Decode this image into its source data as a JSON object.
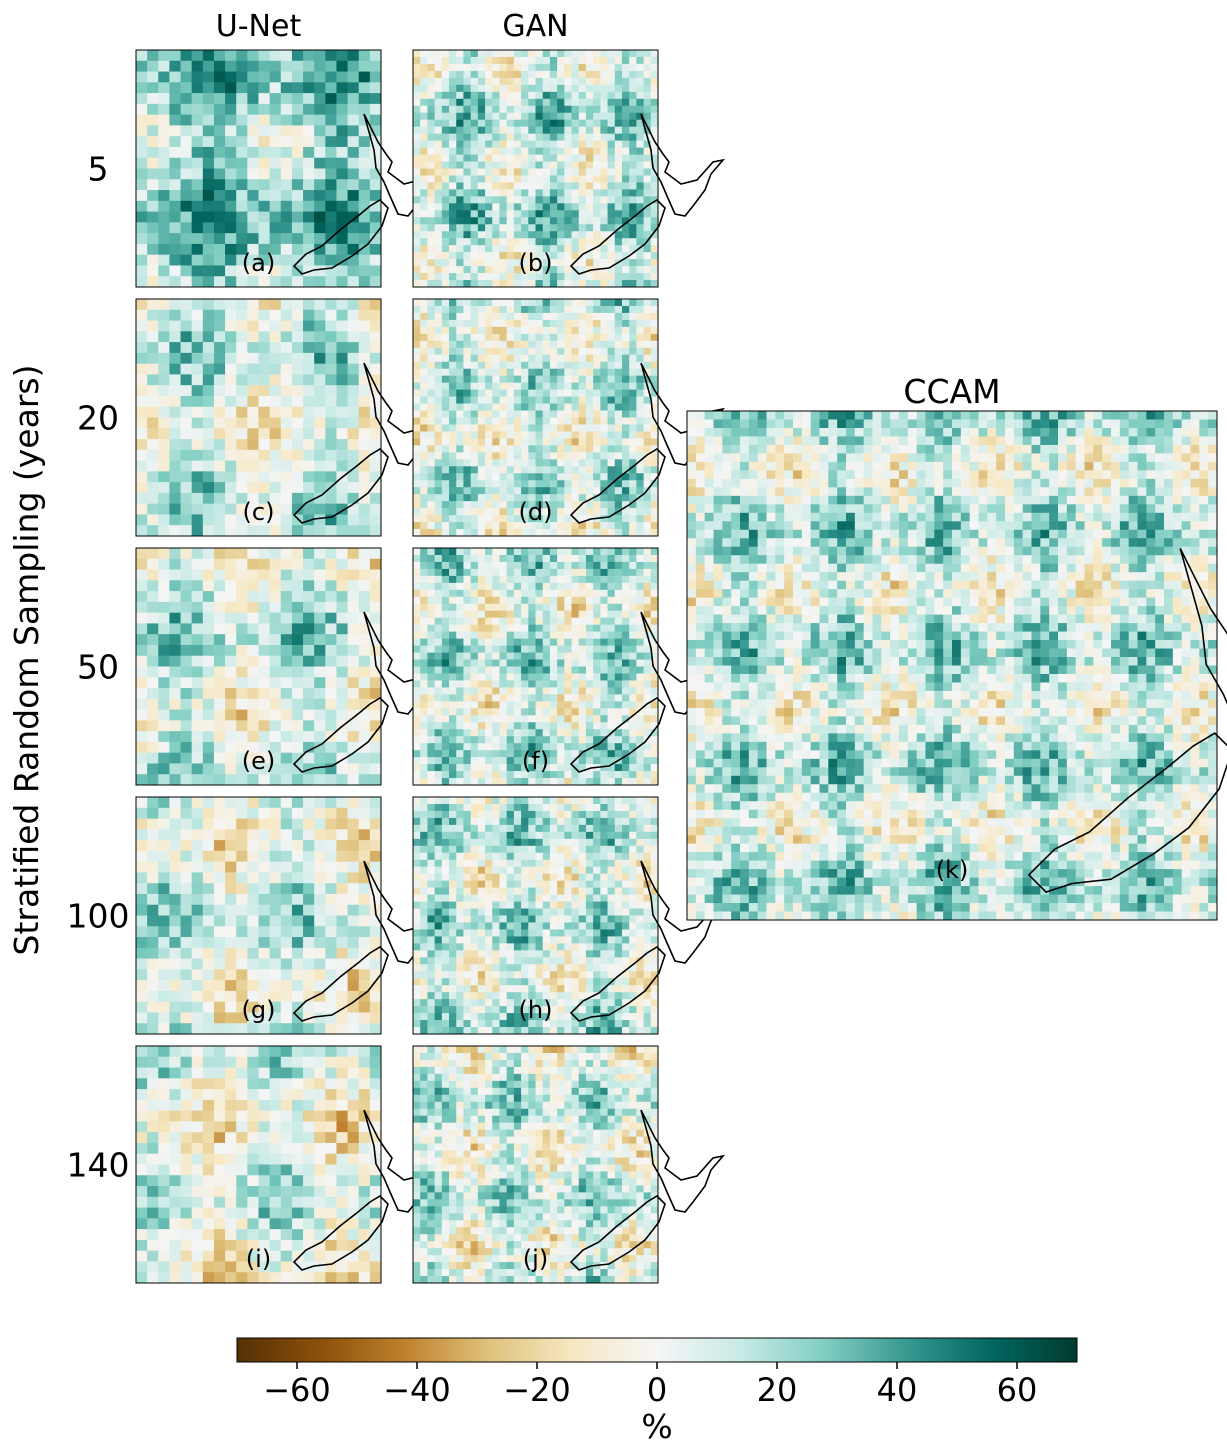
{
  "figure": {
    "row_axis_label": "Stratified Random Sampling (years)",
    "colorbar_label": "%",
    "ccam_title": "CCAM",
    "ccam_panel_label": "(k)"
  },
  "chart_data": {
    "type": "heatmap",
    "column_titles": [
      "U-Net",
      "GAN"
    ],
    "row_labels": [
      "5",
      "20",
      "50",
      "100",
      "140"
    ],
    "panel_labels": [
      [
        "(a)",
        "(b)"
      ],
      [
        "(c)",
        "(d)"
      ],
      [
        "(e)",
        "(f)"
      ],
      [
        "(g)",
        "(h)"
      ],
      [
        "(i)",
        "(j)"
      ]
    ],
    "colorbar": {
      "cmap": "BrBG",
      "range": [
        -70,
        70
      ],
      "ticks": [
        -60,
        -40,
        -20,
        0,
        20,
        40,
        60
      ],
      "tick_labels": [
        "−60",
        "−40",
        "−20",
        "0",
        "20",
        "40",
        "60"
      ],
      "colors": [
        "#543005",
        "#8c510a",
        "#bf812d",
        "#dfc27d",
        "#f6e8c3",
        "#f5f5f5",
        "#c7eae5",
        "#80cdc1",
        "#35978f",
        "#01665e",
        "#003c30"
      ]
    }
  }
}
